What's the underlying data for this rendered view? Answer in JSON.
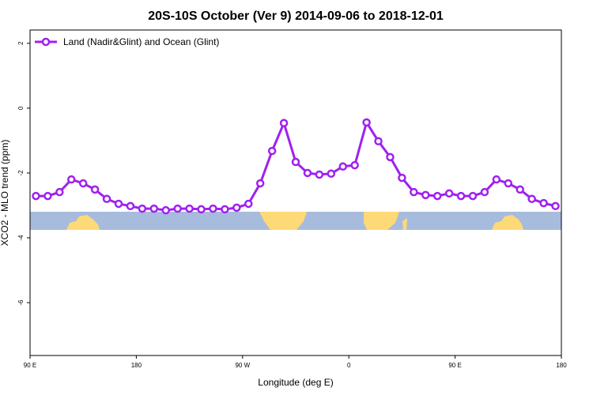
{
  "chart_data": {
    "type": "line",
    "title": "20S-10S October (Ver 9)   2014-09-06 to 2018-12-01",
    "x_label": "Longitude (deg E)",
    "y_label": "XCO2 - MLO trend (ppm)",
    "x": [
      95,
      105,
      115,
      125,
      135,
      145,
      155,
      165,
      175,
      185,
      195,
      205,
      215,
      225,
      235,
      245,
      255,
      265,
      275,
      285,
      295,
      305,
      315,
      325,
      335,
      345,
      355,
      365,
      375,
      385,
      395,
      405,
      415,
      425,
      435,
      445,
      455,
      465,
      475,
      485,
      495,
      505,
      515,
      525,
      535
    ],
    "series": [
      {
        "name": "Land (Nadir&Glint) and Ocean (Glint)",
        "color": "#a020f0",
        "values": [
          -2.71,
          -2.71,
          -2.59,
          -2.2,
          -2.32,
          -2.51,
          -2.8,
          -2.95,
          -3.02,
          -3.1,
          -3.1,
          -3.15,
          -3.1,
          -3.1,
          -3.12,
          -3.1,
          -3.12,
          -3.07,
          -2.95,
          -2.32,
          -1.32,
          -0.46,
          -1.66,
          -2.0,
          -2.05,
          -2.02,
          -1.8,
          -1.76,
          -0.44,
          -1.02,
          -1.51,
          -2.15,
          -2.59,
          -2.68,
          -2.71,
          -2.63,
          -2.71,
          -2.71,
          -2.59,
          -2.2,
          -2.32,
          -2.51,
          -2.8,
          -2.93,
          -3.02
        ]
      }
    ],
    "xlim": [
      90,
      540
    ],
    "xticks": [
      {
        "value": 90,
        "label": "90 E"
      },
      180,
      {
        "value": 270,
        "label": "90 W"
      },
      {
        "value": 360,
        "label": "0"
      },
      {
        "value": 450,
        "label": "90 E"
      },
      {
        "value": 540,
        "label": "180"
      }
    ],
    "ylim": [
      -7.63,
      2.41
    ],
    "yticks": [
      2,
      0,
      -2,
      -4,
      -6
    ],
    "legend": "top-left"
  }
}
